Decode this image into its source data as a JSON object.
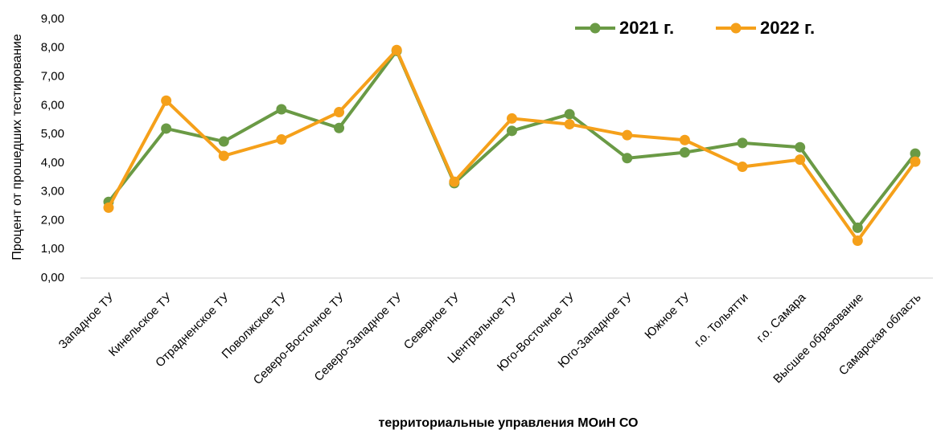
{
  "chart_data": {
    "type": "line",
    "x_label": "территориальные управления МОиН СО",
    "y_label": "Процент от прошедших тестирование",
    "categories": [
      "Западное ТУ",
      "Кинельское ТУ",
      "Отрадненское ТУ",
      "Поволжское ТУ",
      "Северо-Восточное ТУ",
      "Северо-Западное ТУ",
      "Северное ТУ",
      "Центральное ТУ",
      "Юго-Восточное ТУ",
      "Юго-Западное ТУ",
      "Южное ТУ",
      "г.о. Тольятти",
      "г.о. Самара",
      "Высшее образование",
      "Самарская область"
    ],
    "series": [
      {
        "name": "2021 г.",
        "color": "#6a9a45",
        "values": [
          2.65,
          5.2,
          4.75,
          5.87,
          5.22,
          7.9,
          3.3,
          5.12,
          5.7,
          4.17,
          4.37,
          4.7,
          4.55,
          1.75,
          4.33
        ]
      },
      {
        "name": "2022 г.",
        "color": "#f5a01a",
        "values": [
          2.45,
          6.17,
          4.25,
          4.82,
          5.77,
          7.93,
          3.35,
          5.55,
          5.35,
          4.97,
          4.8,
          3.87,
          4.12,
          1.3,
          4.05
        ]
      }
    ],
    "ylim": [
      0,
      9
    ],
    "yticks": [
      {
        "value": 0,
        "label": "0,00"
      },
      {
        "value": 1,
        "label": "1,00"
      },
      {
        "value": 2,
        "label": "2,00"
      },
      {
        "value": 3,
        "label": "3,00"
      },
      {
        "value": 4,
        "label": "4,00"
      },
      {
        "value": 5,
        "label": "5,00"
      },
      {
        "value": 6,
        "label": "6,00"
      },
      {
        "value": 7,
        "label": "7,00"
      },
      {
        "value": 8,
        "label": "8,00"
      },
      {
        "value": 9,
        "label": "9,00"
      }
    ],
    "legend": "top-right"
  }
}
